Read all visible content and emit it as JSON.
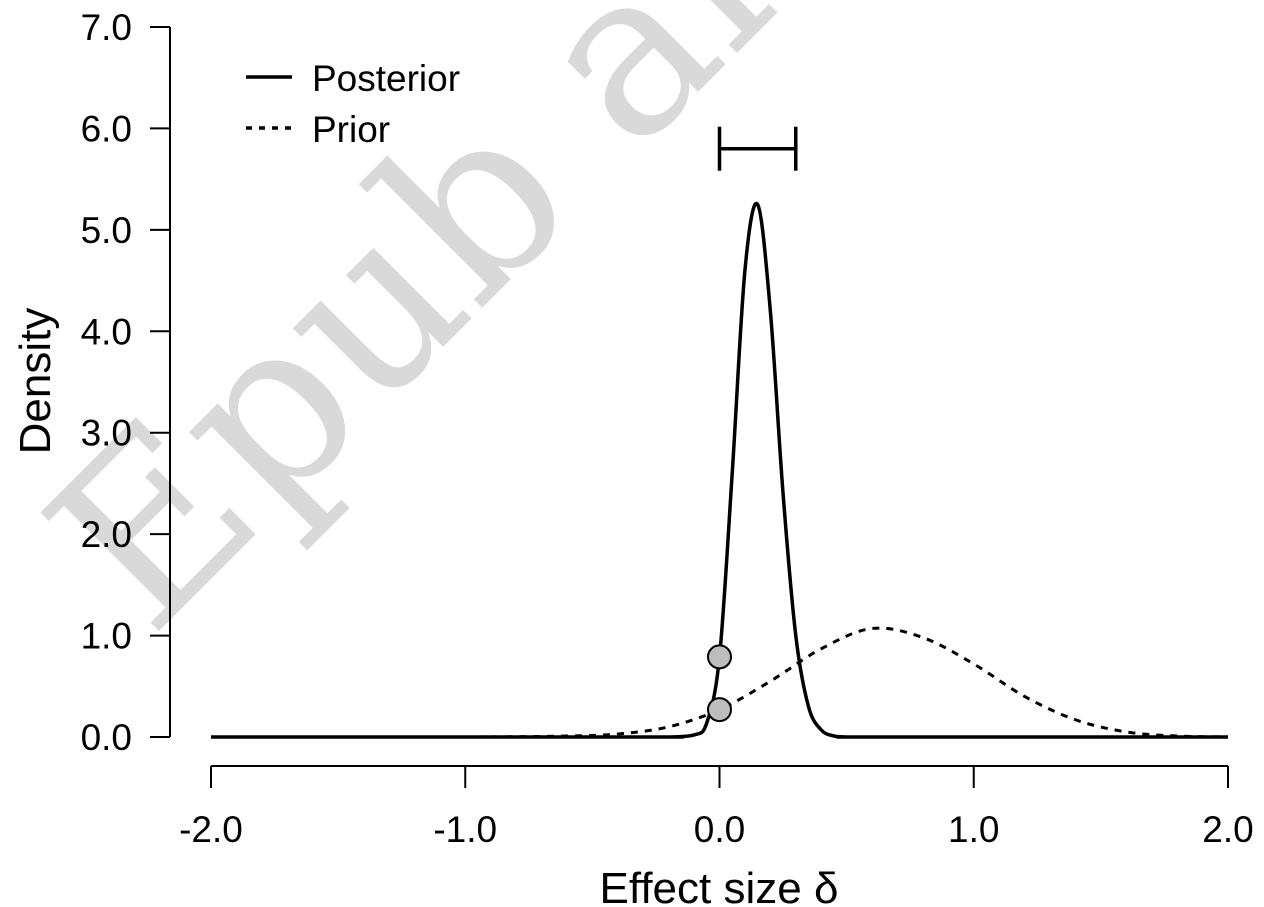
{
  "watermark_text": "Epub ahead",
  "chart_data": {
    "type": "line",
    "xlabel": "Effect size δ",
    "ylabel": "Density",
    "xlim": [
      -2.0,
      2.0
    ],
    "ylim": [
      0.0,
      7.0
    ],
    "xticks": [
      -2.0,
      -1.0,
      0.0,
      1.0,
      2.0
    ],
    "xtick_labels": [
      "-2.0",
      "-1.0",
      "0.0",
      "1.0",
      "2.0"
    ],
    "yticks": [
      0.0,
      1.0,
      2.0,
      3.0,
      4.0,
      5.0,
      6.0,
      7.0
    ],
    "ytick_labels": [
      "0.0",
      "1.0",
      "2.0",
      "3.0",
      "4.0",
      "5.0",
      "6.0",
      "7.0"
    ],
    "grid": false,
    "legend_position": "top-left",
    "series": [
      {
        "name": "Posterior",
        "style": "solid",
        "x": [
          -2.0,
          -0.3,
          -0.2,
          -0.1,
          -0.05,
          0.0,
          0.05,
          0.1,
          0.15,
          0.2,
          0.25,
          0.3,
          0.35,
          0.4,
          0.45,
          0.5,
          0.6,
          2.0
        ],
        "y": [
          0.0,
          0.0,
          0.0,
          0.02,
          0.14,
          0.79,
          2.6,
          4.6,
          5.25,
          4.2,
          2.4,
          1.0,
          0.3,
          0.07,
          0.01,
          0.0,
          0.0,
          0.0
        ]
      },
      {
        "name": "Prior",
        "style": "dashed",
        "x": [
          -2.0,
          -1.0,
          -0.6,
          -0.4,
          -0.2,
          0.0,
          0.2,
          0.4,
          0.6,
          0.8,
          1.0,
          1.2,
          1.4,
          1.6,
          1.8,
          2.0
        ],
        "y": [
          0.0,
          0.0,
          0.01,
          0.03,
          0.1,
          0.27,
          0.55,
          0.87,
          1.07,
          0.98,
          0.72,
          0.4,
          0.17,
          0.05,
          0.01,
          0.0
        ]
      }
    ],
    "points": [
      {
        "x": 0.0,
        "y": 0.79,
        "label": "Posterior density at 0"
      },
      {
        "x": 0.0,
        "y": 0.27,
        "label": "Prior density at 0"
      }
    ],
    "interval": {
      "lower": 0.0,
      "upper": 0.3,
      "y": 5.8
    }
  }
}
